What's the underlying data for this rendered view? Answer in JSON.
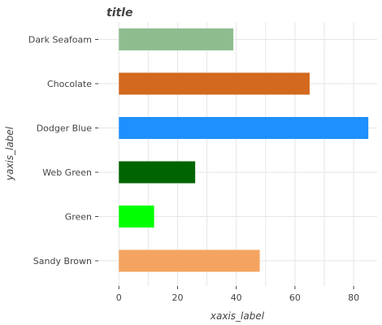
{
  "chart_data": {
    "type": "bar",
    "orientation": "horizontal",
    "title": "title",
    "xlabel": "xaxis_label",
    "ylabel": "yaxis_label",
    "categories": [
      "Dark Seafoam",
      "Chocolate",
      "Dodger Blue",
      "Web Green",
      "Green",
      "Sandy Brown"
    ],
    "values": [
      39,
      65,
      85,
      26,
      12,
      48
    ],
    "colors": [
      "#8fbc8f",
      "#d2691e",
      "#1e90ff",
      "#006400",
      "#00ff00",
      "#f4a460"
    ],
    "xlim": [
      -7,
      88
    ],
    "xticks": [
      0,
      20,
      40,
      60,
      80
    ],
    "grid": true,
    "legend": "none"
  }
}
